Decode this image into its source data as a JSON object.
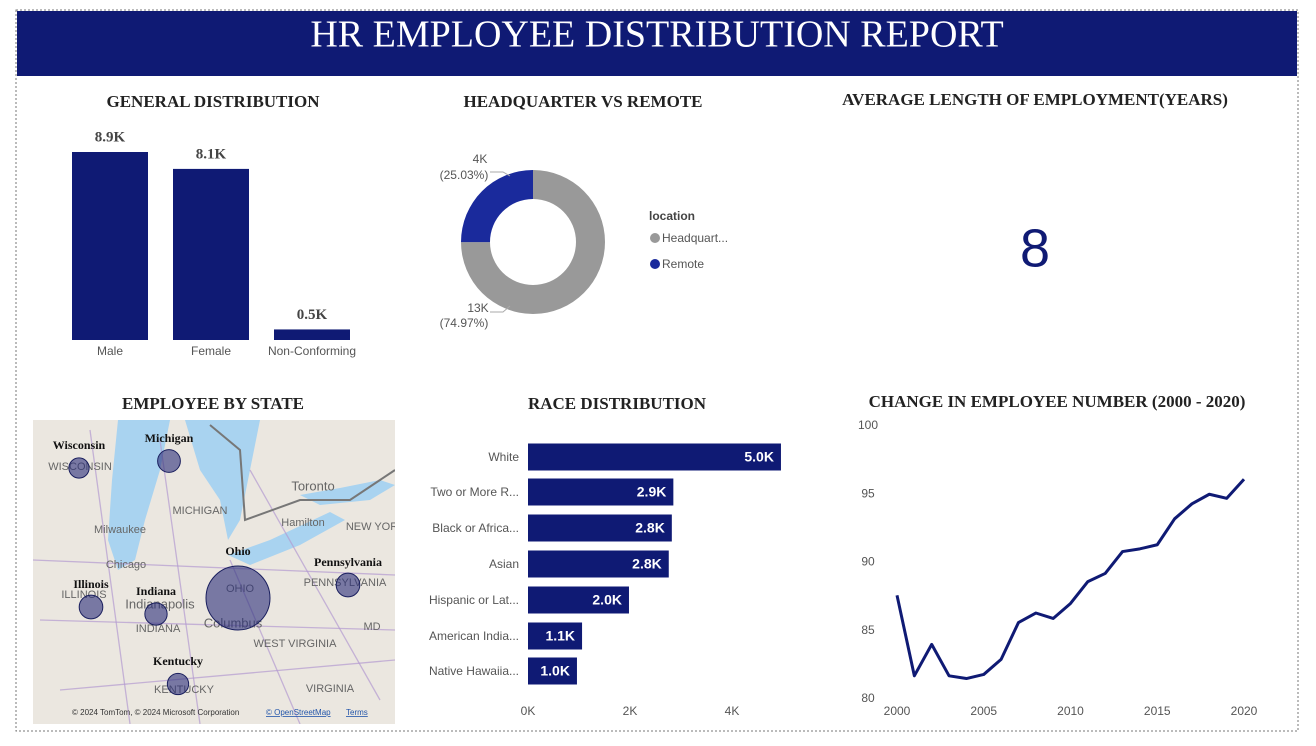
{
  "title": "HR EMPLOYEE DISTRIBUTION REPORT",
  "chart_data": [
    {
      "type": "bar",
      "title": "GENERAL DISTRIBUTION",
      "categories": [
        "Male",
        "Female",
        "Non-Conforming"
      ],
      "values": [
        8900,
        8100,
        500
      ],
      "value_labels": [
        "8.9K",
        "8.1K",
        "0.5K"
      ],
      "color": "#0f1a74"
    },
    {
      "type": "pie",
      "title": "HEADQUARTER VS REMOTE",
      "legend_title": "location",
      "categories": [
        "Headquart...",
        "Remote"
      ],
      "values": [
        74.97,
        25.03
      ],
      "value_labels": [
        "(74.97%)",
        "(25.03%)"
      ],
      "count_labels": [
        "13K",
        "4K"
      ],
      "colors": [
        "#999999",
        "#1a2a9c"
      ]
    },
    {
      "type": "card",
      "title": "AVERAGE LENGTH OF EMPLOYMENT(YEARS)",
      "value": 8,
      "color": "#0f1a74"
    },
    {
      "type": "map",
      "title": "EMPLOYEE BY STATE",
      "categories": [
        "Wisconsin",
        "Michigan",
        "Ohio",
        "Illinois",
        "Indiana",
        "Pennsylvania",
        "Kentucky"
      ],
      "values": [
        350,
        600,
        14000,
        700,
        550,
        700,
        450
      ],
      "color": "#2b2f7a",
      "place_labels": [
        "WISCONSIN",
        "MICHIGAN",
        "Milwaukee",
        "Toronto",
        "Hamilton",
        "NEW YOR",
        "Chicago",
        "ILLINOIS",
        "Indianapolis",
        "INDIANA",
        "OHIO",
        "Columbus",
        "PENNSYLVANIA",
        "WEST VIRGINIA",
        "VIRGINIA",
        "KENTUCKY",
        "MD"
      ],
      "attribution": [
        "© 2024 TomTom, © 2024 Microsoft Corporation",
        "© OpenStreetMap",
        "Terms"
      ]
    },
    {
      "type": "hbar",
      "title": "RACE DISTRIBUTION",
      "categories": [
        "White",
        "Two or More R...",
        "Black or Africa...",
        "Asian",
        "Hispanic or Lat...",
        "American India...",
        "Native Hawaiia..."
      ],
      "values": [
        4960,
        2850,
        2820,
        2760,
        1980,
        1060,
        960
      ],
      "value_labels": [
        "5.0K",
        "2.9K",
        "2.8K",
        "2.8K",
        "2.0K",
        "1.1K",
        "1.0K"
      ],
      "color": "#0f1a74",
      "xlim": [
        0,
        5000
      ],
      "xticks": [
        {
          "value": 0,
          "label": "0K"
        },
        {
          "value": 2000,
          "label": "2K"
        },
        {
          "value": 4000,
          "label": "4K"
        }
      ]
    },
    {
      "type": "line",
      "title": "CHANGE IN EMPLOYEE NUMBER (2000 - 2020)",
      "x": [
        2000,
        2001,
        2002,
        2003,
        2004,
        2005,
        2006,
        2007,
        2008,
        2009,
        2010,
        2011,
        2012,
        2013,
        2014,
        2015,
        2016,
        2017,
        2018,
        2019,
        2020
      ],
      "values": [
        87.6,
        81.7,
        84.0,
        81.7,
        81.5,
        81.8,
        82.9,
        85.6,
        86.3,
        85.9,
        87.0,
        88.6,
        89.2,
        90.8,
        91.0,
        91.3,
        93.2,
        94.3,
        95.0,
        94.7,
        96.1
      ],
      "color": "#0f1a74",
      "xlim": [
        2000,
        2020
      ],
      "xticks": [
        2000,
        2005,
        2010,
        2015,
        2020
      ],
      "ylim": [
        80,
        100
      ],
      "yticks": [
        80,
        85,
        90,
        95,
        100
      ]
    }
  ]
}
